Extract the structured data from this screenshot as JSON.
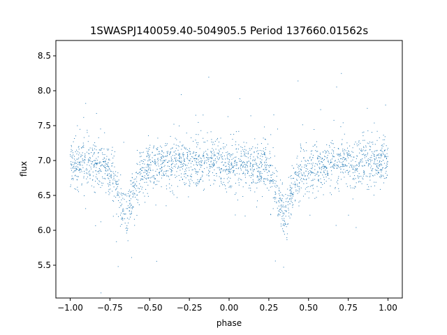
{
  "chart_data": {
    "type": "scatter",
    "title": "1SWASPJ140059.40-504905.5 Period 137660.01562s",
    "xlabel": "phase",
    "ylabel": "flux",
    "xlim": [
      -1.09,
      1.09
    ],
    "ylim": [
      5.03,
      8.72
    ],
    "xticks": [
      -1.0,
      -0.75,
      -0.5,
      -0.25,
      0.0,
      0.25,
      0.5,
      0.75,
      1.0
    ],
    "xtick_labels": [
      "−1.00",
      "−0.75",
      "−0.50",
      "−0.25",
      "0.00",
      "0.25",
      "0.50",
      "0.75",
      "1.00"
    ],
    "yticks": [
      5.5,
      6.0,
      6.5,
      7.0,
      7.5,
      8.0,
      8.5
    ],
    "ytick_labels": [
      "5.5",
      "6.0",
      "6.5",
      "7.0",
      "7.5",
      "8.0",
      "8.5"
    ],
    "grid": false,
    "legend": "none",
    "marker_color": "#1f77b4",
    "series": [
      {
        "x_range": [
          -1.0,
          1.0
        ],
        "baseline_flux": 6.93,
        "scatter_sd": 0.17,
        "dips": [
          {
            "phase": -0.65,
            "flux": 6.3
          },
          {
            "phase": 0.35,
            "flux": 6.3
          }
        ]
      }
    ]
  }
}
